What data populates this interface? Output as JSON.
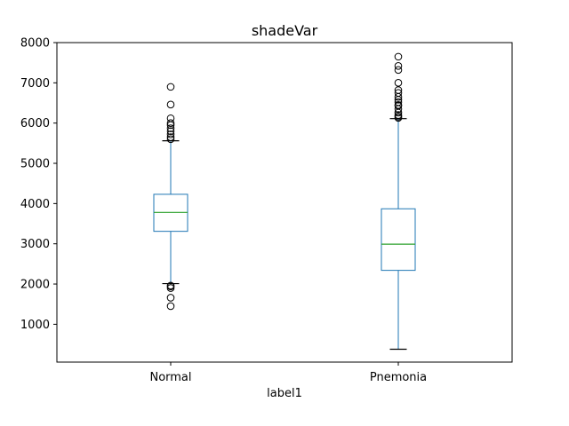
{
  "chart_data": {
    "type": "box",
    "title": "shadeVar",
    "xlabel": "label1",
    "ylabel": "",
    "categories": [
      "Normal",
      "Pnemonia"
    ],
    "ylim": [
      60,
      8000
    ],
    "yticks": [
      1000,
      2000,
      3000,
      4000,
      5000,
      6000,
      7000,
      8000
    ],
    "ytick_labels": [
      "1000",
      "2000",
      "3000",
      "4000",
      "5000",
      "6000",
      "7000",
      "8000"
    ],
    "grid": false,
    "boxes": [
      {
        "category": "Normal",
        "whisker_low": 2010,
        "q1": 3310,
        "median": 3780,
        "q3": 4230,
        "whisker_high": 5560,
        "outliers": [
          1450,
          1660,
          1900,
          1940,
          1960,
          5600,
          5650,
          5720,
          5800,
          5870,
          5950,
          6000,
          6120,
          6460,
          6900
        ]
      },
      {
        "category": "Pnemonia",
        "whisker_low": 380,
        "q1": 2340,
        "median": 2990,
        "q3": 3870,
        "whisker_high": 6110,
        "outliers": [
          6130,
          6160,
          6200,
          6260,
          6350,
          6430,
          6450,
          6520,
          6580,
          6650,
          6750,
          6820,
          7000,
          7320,
          7420,
          7650
        ]
      }
    ],
    "colors": {
      "box": "#1f77b4",
      "median": "#2ca02c",
      "caps": "#000000",
      "outlier_edge": "#000000"
    }
  }
}
